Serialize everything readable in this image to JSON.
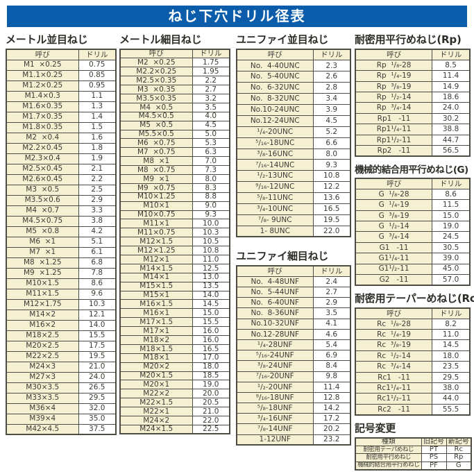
{
  "page_title": "ねじ下穴ドリル径表",
  "colors": {
    "band_bg": "#0b5dab",
    "band_text": "#ffffff",
    "cell_cream": "#f5f0d2",
    "cell_white": "#ffffff",
    "border": "#4c4c44",
    "text": "#3b3b35"
  },
  "tables": {
    "metric_coarse": {
      "title": "メートル並目ねじ",
      "headers": [
        "呼び",
        "ドリル"
      ],
      "cell_names": [
        "designation-cell",
        "drill-cell"
      ],
      "rows": [
        [
          "M1  ×0.25",
          "0.75"
        ],
        [
          "M1.1×0.25",
          "0.85"
        ],
        [
          "M1.2×0.25",
          "0.95"
        ],
        [
          "M1.4×0.3",
          "1.1"
        ],
        [
          "M1.6×0.35",
          "1.3"
        ],
        [
          "M1.7×0.35",
          "1.4"
        ],
        [
          "M1.8×0.35",
          "1.5"
        ],
        [
          "M2  ×0.4",
          "1.6"
        ],
        [
          "M2.2×0.45",
          "1.8"
        ],
        [
          "M2.3×0.4",
          "1.9"
        ],
        [
          "M2.5×0.45",
          "2.1"
        ],
        [
          "M2.6×0.45",
          "2.2"
        ],
        [
          "M3  ×0.5",
          "2.5"
        ],
        [
          "M3.5×0.6",
          "2.9"
        ],
        [
          "M4  ×0.7",
          "3.3"
        ],
        [
          "M4.5×0.75",
          "3.8"
        ],
        [
          "M5  ×0.8",
          "4.2"
        ],
        [
          "M6  ×1",
          "5.1"
        ],
        [
          "M7  ×1",
          "6.1"
        ],
        [
          "M8  ×1.25",
          "6.8"
        ],
        [
          "M9  ×1.25",
          "7.8"
        ],
        [
          "M10×1.5",
          "8.6"
        ],
        [
          "M11×1.5",
          "9.6"
        ],
        [
          "M12×1.75",
          "10.3"
        ],
        [
          "M14×2",
          "12.1"
        ],
        [
          "M16×2",
          "14.0"
        ],
        [
          "M18×2.5",
          "15.5"
        ],
        [
          "M20×2.5",
          "17.5"
        ],
        [
          "M22×2.5",
          "19.5"
        ],
        [
          "M24×3",
          "21.0"
        ],
        [
          "M27×3",
          "24.0"
        ],
        [
          "M30×3.5",
          "26.5"
        ],
        [
          "M33×3.5",
          "29.5"
        ],
        [
          "M36×4",
          "32.0"
        ],
        [
          "M39×4",
          "35.0"
        ],
        [
          "M42×4.5",
          "37.5"
        ]
      ]
    },
    "metric_fine": {
      "title": "メートル細目ねじ",
      "headers": [
        "呼び",
        "ドリル"
      ],
      "cell_names": [
        "designation-cell",
        "drill-cell"
      ],
      "rows": [
        [
          "M2  ×0.25",
          "1.75"
        ],
        [
          "M2.2×0.25",
          "1.95"
        ],
        [
          "M2.5×0.35",
          "2.2"
        ],
        [
          "M3  ×0.35",
          "2.7"
        ],
        [
          "M3.5×0.35",
          "3.2"
        ],
        [
          "M4  ×0.5",
          "3.5"
        ],
        [
          "M4.5×0.5",
          "4.0"
        ],
        [
          "M5  ×0.5",
          "4.5"
        ],
        [
          "M5.5×0.5",
          "5.0"
        ],
        [
          "M6  ×0.75",
          "5.3"
        ],
        [
          "M7  ×0.75",
          "6.3"
        ],
        [
          "M8  ×1",
          "7.0"
        ],
        [
          "M8  ×0.75",
          "7.3"
        ],
        [
          "M9  ×1",
          "8.0"
        ],
        [
          "M9  ×0.75",
          "8.3"
        ],
        [
          "M10×1.25",
          "8.8"
        ],
        [
          "M10×1",
          "9.0"
        ],
        [
          "M10×0.75",
          "9.3"
        ],
        [
          "M11×1",
          "10.0"
        ],
        [
          "M11×0.75",
          "10.3"
        ],
        [
          "M12×1.5",
          "10.5"
        ],
        [
          "M12×1.25",
          "10.8"
        ],
        [
          "M12×1",
          "11.0"
        ],
        [
          "M14×1.5",
          "12.5"
        ],
        [
          "M14×1",
          "13.0"
        ],
        [
          "M15×1.5",
          "13.5"
        ],
        [
          "M15×1",
          "14.0"
        ],
        [
          "M16×1.5",
          "14.5"
        ],
        [
          "M16×1",
          "15.0"
        ],
        [
          "M17×1.5",
          "15.5"
        ],
        [
          "M17×1",
          "16.0"
        ],
        [
          "M18×2",
          "16.0"
        ],
        [
          "M18×1.5",
          "16.5"
        ],
        [
          "M18×1",
          "17.0"
        ],
        [
          "M20×2",
          "18.0"
        ],
        [
          "M20×1.5",
          "18.5"
        ],
        [
          "M20×1",
          "19.0"
        ],
        [
          "M22×2",
          "20.0"
        ],
        [
          "M22×1.5",
          "20.5"
        ],
        [
          "M22×1",
          "21.0"
        ],
        [
          "M24×2",
          "22.0"
        ],
        [
          "M24×1.5",
          "22.5"
        ]
      ]
    },
    "unified_coarse": {
      "title": "ユニファイ並目ねじ",
      "headers": [
        "呼び",
        "ドリル"
      ],
      "cell_names": [
        "designation-cell",
        "drill-cell"
      ],
      "rows": [
        [
          "No.  4-40UNC",
          "2.3"
        ],
        [
          "No.  5-40UNC",
          "2.6"
        ],
        [
          "No.  6-32UNC",
          "2.8"
        ],
        [
          "No.  8-32UNC",
          "3.4"
        ],
        [
          "No.10-24UNC",
          "3.9"
        ],
        [
          "No.12-24UNC",
          "4.5"
        ],
        [
          "¹/₄-20UNC",
          "5.2"
        ],
        [
          "⁵/₁₆-18UNC",
          "6.6"
        ],
        [
          "³/₈-16UNC",
          "8.0"
        ],
        [
          "⁷/₁₆-14UNC",
          "9.3"
        ],
        [
          "¹/₂-13UNC",
          "10.8"
        ],
        [
          "⁹/₁₆-12UNC",
          "12.2"
        ],
        [
          "⁵/₈-11UNC",
          "13.6"
        ],
        [
          "³/₄-10UNC",
          "16.5"
        ],
        [
          "⁷/₈- 9UNC",
          "19.5"
        ],
        [
          "1- 8UNC",
          "22.0"
        ]
      ]
    },
    "unified_fine": {
      "title": "ユニファイ細目ねじ",
      "headers": [
        "呼び",
        "ドリル"
      ],
      "cell_names": [
        "designation-cell",
        "drill-cell"
      ],
      "rows": [
        [
          "No.  4-48UNF",
          "2.4"
        ],
        [
          "No.  5-44UNF",
          "2.7"
        ],
        [
          "No.  6-40UNF",
          "2.9"
        ],
        [
          "No.  8-36UNF",
          "3.5"
        ],
        [
          "No.10-32UNF",
          "4.1"
        ],
        [
          "No.12-28UNF",
          "4.6"
        ],
        [
          "¹/₄-28UNF",
          "5.4"
        ],
        [
          "⁵/₁₆-24UNF",
          "6.9"
        ],
        [
          "³/₈-24UNF",
          "8.4"
        ],
        [
          "⁷/₁₆-20UNF",
          "9.8"
        ],
        [
          "¹/₂-20UNF",
          "11.4"
        ],
        [
          "⁹/₁₆-18UNF",
          "12.8"
        ],
        [
          "⁵/₈-18UNF",
          "14.2"
        ],
        [
          "³/₄-16UNF",
          "17.2"
        ],
        [
          "⁷/₈-14UNF",
          "20.2"
        ],
        [
          "1-12UNF",
          "23.2"
        ]
      ]
    },
    "rp": {
      "title": "耐密用平行めねじ(Rp)",
      "headers": [
        "呼び",
        "ドリル"
      ],
      "cell_names": [
        "designation-cell",
        "drill-cell"
      ],
      "rows": [
        [
          "Rp  ¹/₈-28",
          "8.5"
        ],
        [
          "Rp  ¹/₄-19",
          "11.4"
        ],
        [
          "Rp  ³/₈-19",
          "14.9"
        ],
        [
          "Rp  ¹/₂-14",
          "18.6"
        ],
        [
          "Rp  ³/₄-14",
          "24.0"
        ],
        [
          "Rp1   -11",
          "30.2"
        ],
        [
          "Rp1¹/₄-11",
          "38.8"
        ],
        [
          "Rp1¹/₂-11",
          "44.7"
        ],
        [
          "Rp2   -11",
          "56.5"
        ]
      ]
    },
    "g": {
      "title": "機械的結合用平行めねじ(G)",
      "headers": [
        "呼び",
        "ドリル"
      ],
      "cell_names": [
        "designation-cell",
        "drill-cell"
      ],
      "rows": [
        [
          "G  ¹/₈-28",
          "8.6"
        ],
        [
          "G  ¹/₄-19",
          "11.5"
        ],
        [
          "G  ³/₈-19",
          "15.0"
        ],
        [
          "G  ¹/₂-14",
          "19.0"
        ],
        [
          "G  ³/₄-14",
          "24.5"
        ],
        [
          "G1   -11",
          "30.5"
        ],
        [
          "G1¹/₄-11",
          "39.0"
        ],
        [
          "G1¹/₂-11",
          "45.0"
        ],
        [
          "G2   -11",
          "57.0"
        ]
      ]
    },
    "rc": {
      "title": "耐密用テーパーめねじ(Rc)",
      "headers": [
        "呼び",
        "ドリル"
      ],
      "cell_names": [
        "designation-cell",
        "drill-cell"
      ],
      "rows": [
        [
          "Rc  ¹/₈-28",
          "8.2"
        ],
        [
          "Rc  ¹/₄-19",
          "11.0"
        ],
        [
          "Rc  ³/₈-19",
          "14.5"
        ],
        [
          "Rc  ¹/₂-14",
          "18.0"
        ],
        [
          "Rc  ³/₄-14",
          "23.5"
        ],
        [
          "Rc1   -11",
          "29.5"
        ],
        [
          "Rc1¹/₄-11",
          "38.0"
        ],
        [
          "Rc1¹/₂-11",
          "44.0"
        ],
        [
          "Rc2   -11",
          "55.5"
        ]
      ]
    },
    "symbol_change": {
      "title": "記号変更",
      "headers": [
        "種類",
        "旧記号",
        "新記号"
      ],
      "cell_names": [
        "type-cell",
        "old-symbol-cell",
        "new-symbol-cell"
      ],
      "rows": [
        [
          "耐密用テーパめねじ",
          "PT",
          "Rc"
        ],
        [
          "耐密用平行めねじ",
          "PS",
          "Rp"
        ],
        [
          "機械的結合用平行めねじ",
          "PF",
          "G"
        ]
      ]
    }
  }
}
